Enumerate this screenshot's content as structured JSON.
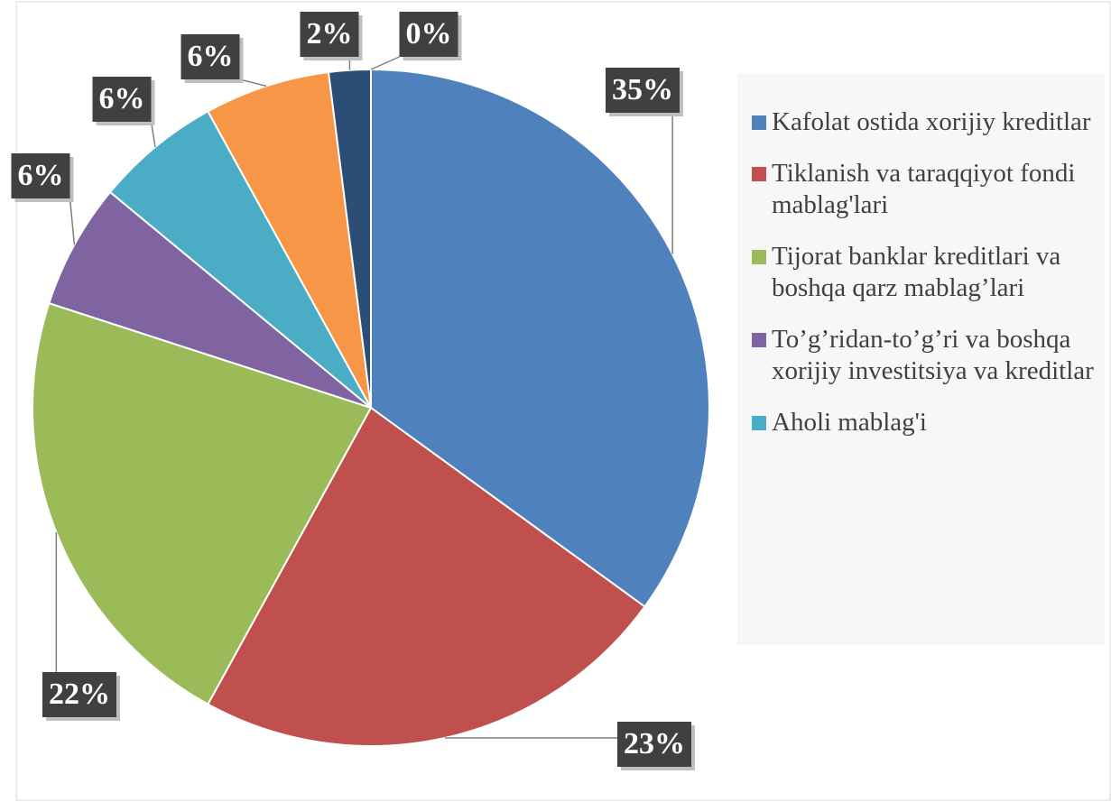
{
  "chart_data": {
    "type": "pie",
    "categories": [
      "Kafolat ostida xorijiy kreditlar",
      "Tiklanish va taraqqiyot fondi mablag'lari",
      "Tijorat banklar kreditlari va boshqa qarz mablag’lari",
      "To’g’ridan-to’g’ri va boshqa xorijiy investitsiya va kreditlar",
      "Aholi mablag'i",
      null,
      null,
      null
    ],
    "values": [
      35,
      23,
      22,
      6,
      6,
      6,
      2,
      0
    ],
    "value_labels": [
      "35%",
      "23%",
      "22%",
      "6%",
      "6%",
      "6%",
      "2%",
      "0%"
    ],
    "colors": [
      "#4f81bd",
      "#c0504d",
      "#9bbb59",
      "#8064a2",
      "#4bacc6",
      "#f79646",
      "#2c4d75",
      "#772c2a"
    ],
    "legend": "right"
  }
}
